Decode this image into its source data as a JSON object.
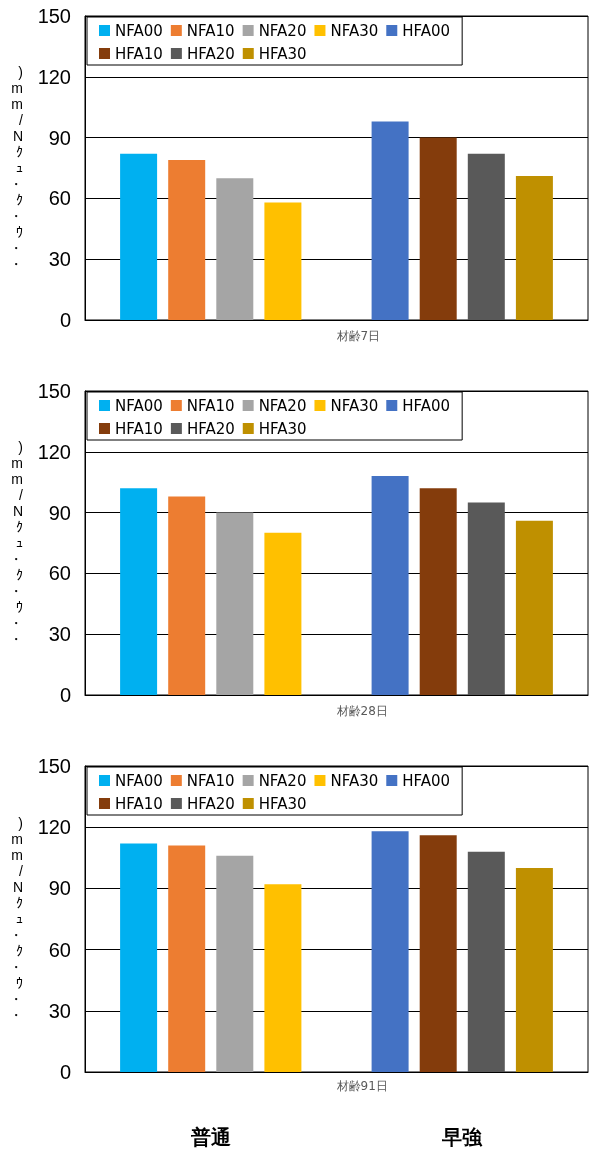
{
  "chart_data": [
    {
      "type": "bar",
      "xlabel": "材齢7日",
      "ylabel": ")mm/Nｸｭ・ｸ・ｳ・・",
      "categories": [
        null,
        null
      ],
      "ylim": [
        0,
        150
      ],
      "yticks": [
        0,
        30,
        60,
        90,
        120,
        150
      ],
      "grid": "y",
      "legend": "top left",
      "series": [
        {
          "name": "NFA00",
          "color": "#00b0f0",
          "values": [
            82,
            null
          ]
        },
        {
          "name": "NFA10",
          "color": "#ed7d31",
          "values": [
            79,
            null
          ]
        },
        {
          "name": "NFA20",
          "color": "#a5a5a5",
          "values": [
            70,
            null
          ]
        },
        {
          "name": "NFA30",
          "color": "#ffc000",
          "values": [
            58,
            null
          ]
        },
        {
          "name": "HFA00",
          "color": "#4472c4",
          "values": [
            null,
            98
          ]
        },
        {
          "name": "HFA10",
          "color": "#843c0c",
          "values": [
            null,
            90
          ]
        },
        {
          "name": "HFA20",
          "color": "#595959",
          "values": [
            null,
            82
          ]
        },
        {
          "name": "HFA30",
          "color": "#bf9000",
          "values": [
            null,
            71
          ]
        }
      ]
    },
    {
      "type": "bar",
      "xlabel": "材齢28日",
      "ylabel": ")mm/Nｸｭ・ｸ・ｳ・・",
      "categories": [
        null,
        null
      ],
      "ylim": [
        0,
        150
      ],
      "yticks": [
        0,
        30,
        60,
        90,
        120,
        150
      ],
      "grid": "y",
      "legend": "top left",
      "series": [
        {
          "name": "NFA00",
          "color": "#00b0f0",
          "values": [
            102,
            null
          ]
        },
        {
          "name": "NFA10",
          "color": "#ed7d31",
          "values": [
            98,
            null
          ]
        },
        {
          "name": "NFA20",
          "color": "#a5a5a5",
          "values": [
            90,
            null
          ]
        },
        {
          "name": "NFA30",
          "color": "#ffc000",
          "values": [
            80,
            null
          ]
        },
        {
          "name": "HFA00",
          "color": "#4472c4",
          "values": [
            null,
            108
          ]
        },
        {
          "name": "HFA10",
          "color": "#843c0c",
          "values": [
            null,
            102
          ]
        },
        {
          "name": "HFA20",
          "color": "#595959",
          "values": [
            null,
            95
          ]
        },
        {
          "name": "HFA30",
          "color": "#bf9000",
          "values": [
            null,
            86
          ]
        }
      ]
    },
    {
      "type": "bar",
      "xlabel": "材齢91日",
      "ylabel": ")mm/Nｸｭ・ｸ・ｳ・・",
      "categories": [
        "普通",
        "早強"
      ],
      "ylim": [
        0,
        150
      ],
      "yticks": [
        0,
        30,
        60,
        90,
        120,
        150
      ],
      "grid": "y",
      "legend": "top left",
      "series": [
        {
          "name": "NFA00",
          "color": "#00b0f0",
          "values": [
            112,
            null
          ]
        },
        {
          "name": "NFA10",
          "color": "#ed7d31",
          "values": [
            111,
            null
          ]
        },
        {
          "name": "NFA20",
          "color": "#a5a5a5",
          "values": [
            106,
            null
          ]
        },
        {
          "name": "NFA30",
          "color": "#ffc000",
          "values": [
            92,
            null
          ]
        },
        {
          "name": "HFA00",
          "color": "#4472c4",
          "values": [
            null,
            118
          ]
        },
        {
          "name": "HFA10",
          "color": "#843c0c",
          "values": [
            null,
            116
          ]
        },
        {
          "name": "HFA20",
          "color": "#595959",
          "values": [
            null,
            108
          ]
        },
        {
          "name": "HFA30",
          "color": "#bf9000",
          "values": [
            null,
            100
          ]
        }
      ]
    }
  ]
}
